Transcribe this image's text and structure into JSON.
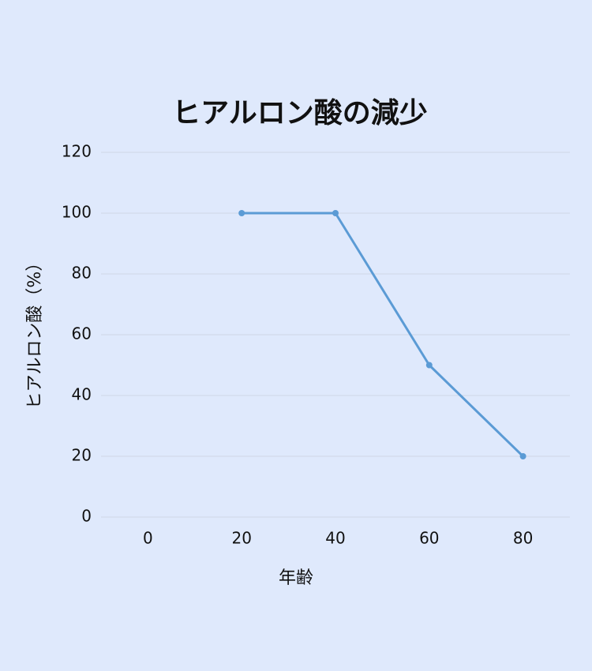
{
  "chart_data": {
    "type": "line",
    "title": "ヒアルロン酸の減少",
    "x_label": "年齢",
    "y_label": "ヒアルロン酸（%）",
    "categories": [
      "0",
      "20",
      "40",
      "60",
      "80"
    ],
    "series": [
      {
        "name": "ヒアルロン酸",
        "color": "#5b9bd5",
        "values": [
          null,
          100,
          100,
          50,
          20
        ]
      }
    ],
    "ylim": [
      0,
      120
    ],
    "yticks": [
      0,
      20,
      40,
      60,
      80,
      100,
      120
    ],
    "grid": true
  }
}
